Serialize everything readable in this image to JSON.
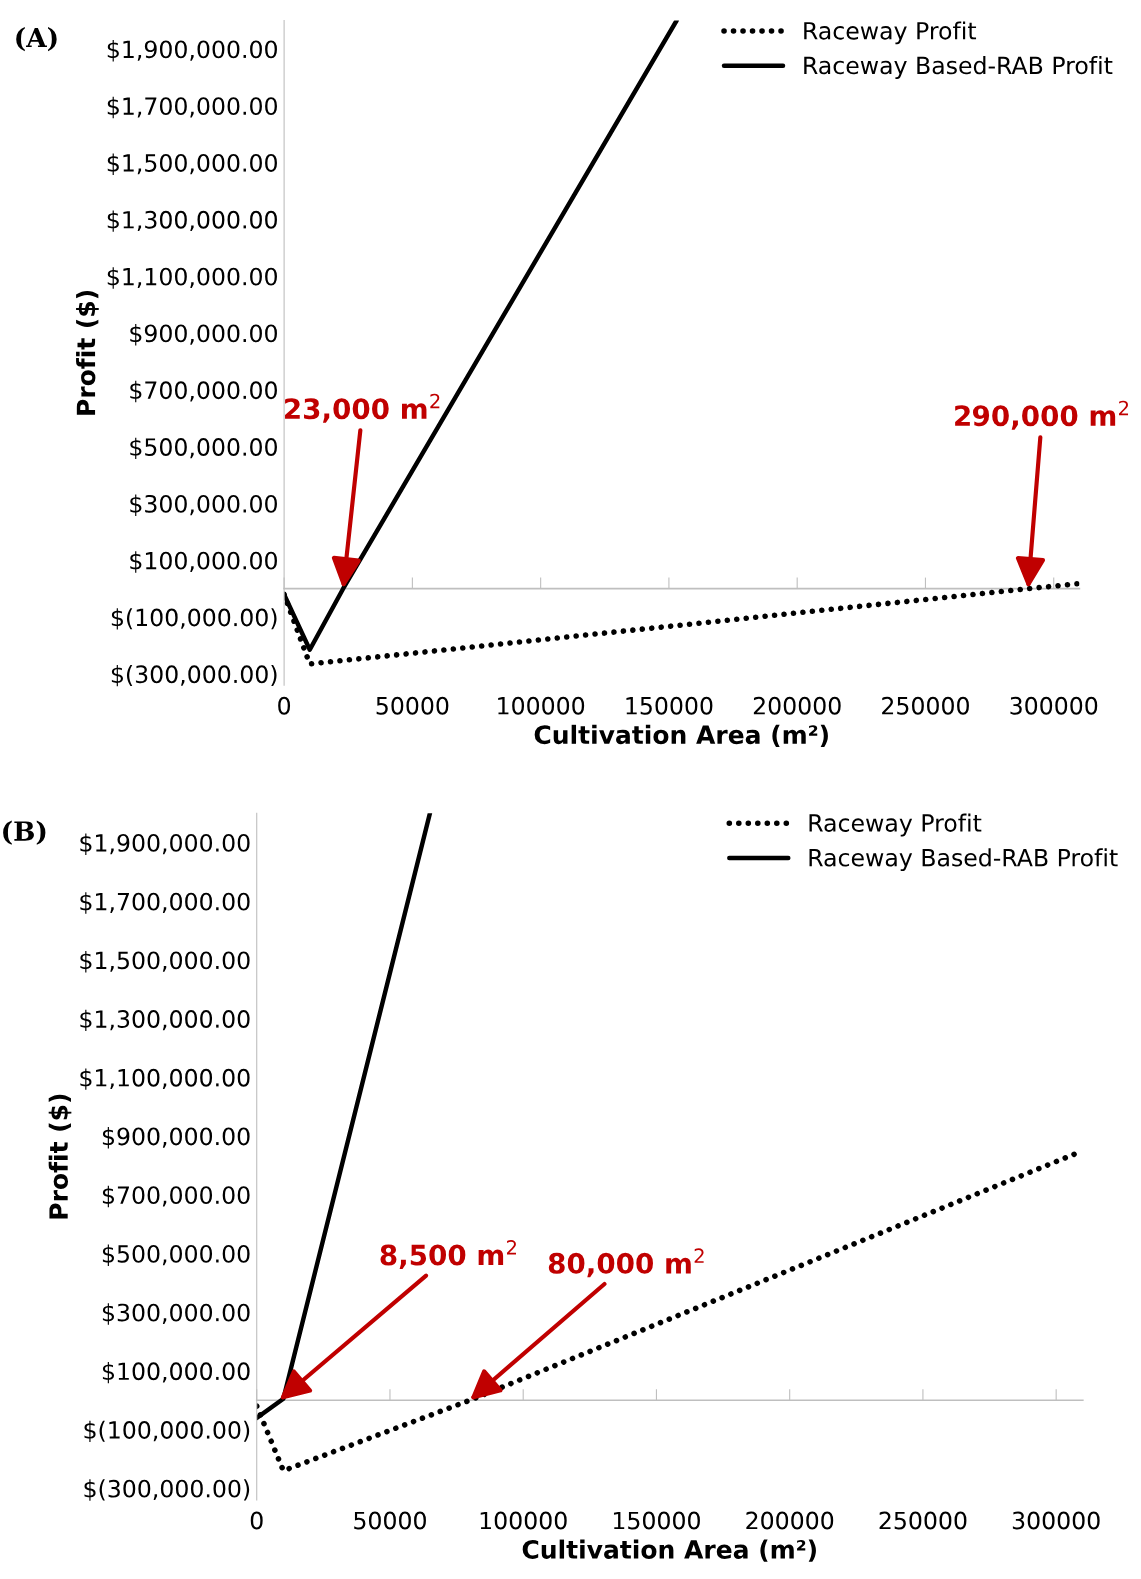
{
  "chart_data": [
    {
      "type": "line",
      "title": "(A)",
      "xlabel": "Cultivation Area (m²)",
      "ylabel": "Profit ($)",
      "xlim": [
        0,
        310000
      ],
      "xticks": [
        0,
        50000,
        100000,
        150000,
        200000,
        250000,
        300000
      ],
      "ylim": [
        -340000,
        2000000
      ],
      "yticks": [
        {
          "value": 1900000,
          "label": "$1,900,000.00"
        },
        {
          "value": 1700000,
          "label": "$1,700,000.00"
        },
        {
          "value": 1500000,
          "label": "$1,500,000.00"
        },
        {
          "value": 1300000,
          "label": "$1,300,000.00"
        },
        {
          "value": 1100000,
          "label": "$1,100,000.00"
        },
        {
          "value": 900000,
          "label": "$900,000.00"
        },
        {
          "value": 700000,
          "label": "$700,000.00"
        },
        {
          "value": 500000,
          "label": "$500,000.00"
        },
        {
          "value": 300000,
          "label": "$300,000.00"
        },
        {
          "value": 100000,
          "label": "$100,000.00"
        },
        {
          "value": -100000,
          "label": "$(100,000.00)"
        },
        {
          "value": -300000,
          "label": "$(300,000.00)"
        }
      ],
      "series": [
        {
          "name": "Raceway Profit",
          "color": "#000000",
          "line_style": "dotted",
          "x": [
            0,
            10000,
            290000,
            310000
          ],
          "values": [
            -20000,
            -265000,
            0,
            18000
          ]
        },
        {
          "name": "Raceway Based-RAB Profit",
          "color": "#000000",
          "line_style": "solid",
          "x": [
            0,
            10000,
            23000,
            153000
          ],
          "values": [
            -20000,
            -215000,
            0,
            2000000
          ]
        }
      ],
      "annotations": [
        {
          "text": "23,000 m$^{2}$",
          "x": 23000,
          "y": 0
        },
        {
          "text": "290,000 m$^{2}$",
          "x": 290000,
          "y": 0
        }
      ],
      "legend": "top right",
      "grid": false,
      "marker": "none"
    },
    {
      "type": "line",
      "title": "(B)",
      "xlabel": "Cultivation Area (m²)",
      "ylabel": "Profit ($)",
      "xlim": [
        0,
        310000
      ],
      "xticks": [
        0,
        50000,
        100000,
        150000,
        200000,
        250000,
        300000
      ],
      "ylim": [
        -340000,
        2000000
      ],
      "yticks": [
        {
          "value": 1900000,
          "label": "$1,900,000.00"
        },
        {
          "value": 1700000,
          "label": "$1,700,000.00"
        },
        {
          "value": 1500000,
          "label": "$1,500,000.00"
        },
        {
          "value": 1300000,
          "label": "$1,300,000.00"
        },
        {
          "value": 1100000,
          "label": "$1,100,000.00"
        },
        {
          "value": 900000,
          "label": "$900,000.00"
        },
        {
          "value": 700000,
          "label": "$700,000.00"
        },
        {
          "value": 500000,
          "label": "$500,000.00"
        },
        {
          "value": 300000,
          "label": "$300,000.00"
        },
        {
          "value": 100000,
          "label": "$100,000.00"
        },
        {
          "value": -100000,
          "label": "$(100,000.00)"
        },
        {
          "value": -300000,
          "label": "$(300,000.00)"
        }
      ],
      "series": [
        {
          "name": "Raceway Profit",
          "color": "#000000",
          "line_style": "dotted",
          "x": [
            0,
            10000,
            80000,
            310000
          ],
          "values": [
            -20000,
            -240000,
            0,
            850000
          ]
        },
        {
          "name": "Raceway Based-RAB Profit",
          "color": "#000000",
          "line_style": "solid",
          "x": [
            0,
            10000,
            65000
          ],
          "values": [
            -60000,
            5000,
            2000000
          ]
        }
      ],
      "annotations": [
        {
          "text": "8,500 m$^{2}$",
          "x": 8500,
          "y": 0
        },
        {
          "text": "80,000 m$^{2}$",
          "x": 80000,
          "y": 0
        }
      ],
      "legend": "top right",
      "grid": false,
      "marker": "none"
    }
  ]
}
